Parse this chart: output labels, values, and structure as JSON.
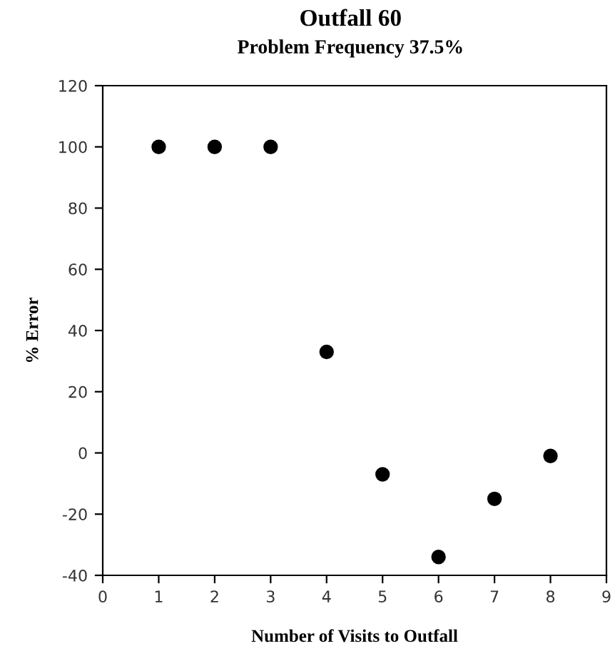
{
  "chart_data": {
    "type": "scatter",
    "title": "Outfall 60",
    "subtitle": "Problem Frequency 37.5%",
    "xlabel": "Number of Visits to Outfall",
    "ylabel": "% Error",
    "x": [
      1,
      2,
      3,
      4,
      5,
      6,
      7,
      8
    ],
    "values": [
      100,
      100,
      100,
      33,
      -7,
      -34,
      -15,
      -1
    ],
    "color": "#000000",
    "marker": "circle",
    "xlim": [
      0,
      9
    ],
    "xticks": [
      0,
      1,
      2,
      3,
      4,
      5,
      6,
      7,
      8,
      9
    ],
    "ylim": [
      -40,
      120
    ],
    "yticks": [
      -40,
      -20,
      0,
      20,
      40,
      60,
      80,
      100,
      120
    ],
    "grid": false,
    "legend": false
  }
}
